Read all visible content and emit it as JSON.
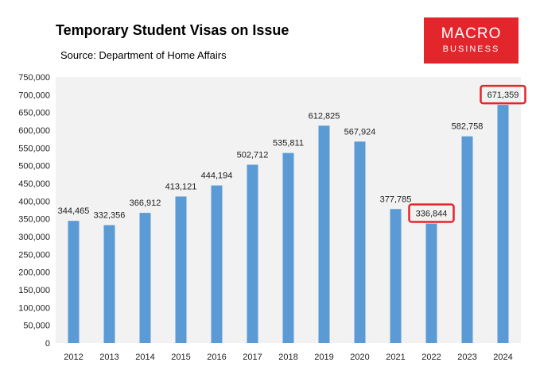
{
  "logo": {
    "line1": "MACRO",
    "line2": "BUSINESS",
    "color": "#e3262c"
  },
  "chart_data": {
    "type": "bar",
    "title": "Temporary Student Visas on Issue",
    "subtitle": "Source: Department of Home Affairs",
    "xlabel": "",
    "ylabel": "",
    "ylim": [
      0,
      750000
    ],
    "yticks": [
      "0",
      "50,000",
      "100,000",
      "150,000",
      "200,000",
      "250,000",
      "300,000",
      "350,000",
      "400,000",
      "450,000",
      "500,000",
      "550,000",
      "600,000",
      "650,000",
      "700,000",
      "750,000"
    ],
    "grid": false,
    "legend": "none",
    "bar_color": "#5b9bd5",
    "plot_background": "#f2f2f2",
    "highlight_color": "#e3262c",
    "categories": [
      "2012",
      "2013",
      "2014",
      "2015",
      "2016",
      "2017",
      "2018",
      "2019",
      "2020",
      "2021",
      "2022",
      "2023",
      "2024"
    ],
    "values": [
      344465,
      332356,
      366912,
      413121,
      444194,
      502712,
      535811,
      612825,
      567924,
      377785,
      336844,
      582758,
      671359
    ],
    "value_labels": [
      "344,465",
      "332,356",
      "366,912",
      "413,121",
      "444,194",
      "502,712",
      "535,811",
      "612,825",
      "567,924",
      "377,785",
      "336,844",
      "582,758",
      "671,359"
    ],
    "highlighted": [
      "2022",
      "2024"
    ]
  }
}
